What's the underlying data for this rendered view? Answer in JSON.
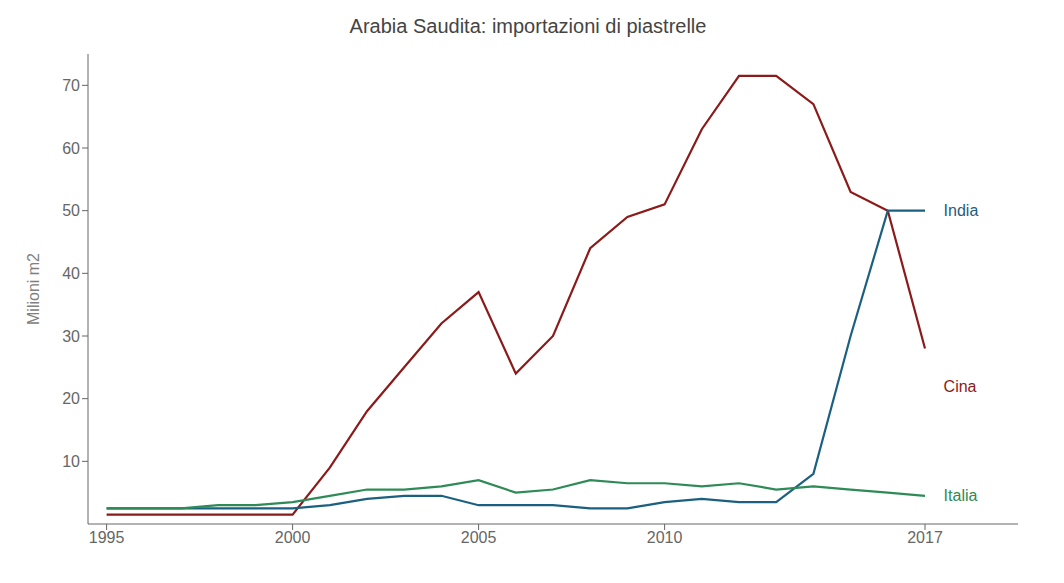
{
  "chart_data": {
    "type": "line",
    "title": "Arabia Saudita: importazioni di piastrelle",
    "y_label": "Milioni m2",
    "x": [
      1995,
      1996,
      1997,
      1998,
      1999,
      2000,
      2001,
      2002,
      2003,
      2004,
      2005,
      2006,
      2007,
      2008,
      2009,
      2010,
      2011,
      2012,
      2013,
      2014,
      2015,
      2016,
      2017
    ],
    "series": [
      {
        "color": "#8B1A1A",
        "values": [
          1.5,
          1.5,
          1.5,
          1.5,
          1.5,
          1.5,
          9.0,
          18.0,
          25.0,
          32.0,
          37.0,
          24.0,
          30.0,
          44.0,
          49.0,
          51.0,
          63.0,
          71.5,
          71.5,
          67.0,
          53.0,
          50.0,
          28.0
        ]
      },
      {
        "color": "#1B6080",
        "values": [
          2.5,
          2.5,
          2.5,
          2.5,
          2.5,
          2.5,
          3.0,
          4.0,
          4.5,
          4.5,
          3.0,
          3.0,
          3.0,
          2.5,
          2.5,
          3.5,
          4.0,
          3.5,
          3.5,
          8.0,
          30.0,
          50.0,
          50.0
        ]
      },
      {
        "color": "#2E8B57",
        "values": [
          2.5,
          2.5,
          2.5,
          3.0,
          3.0,
          3.5,
          4.5,
          5.5,
          5.5,
          6.0,
          7.0,
          5.0,
          5.5,
          7.0,
          6.5,
          6.5,
          6.0,
          6.5,
          5.5,
          6.0,
          5.5,
          5.0,
          4.5
        ]
      }
    ],
    "xlim": [
      1994.5,
      2019.5
    ],
    "xticks": [
      1995,
      2000,
      2005,
      2010,
      2017
    ],
    "ylim": [
      0,
      75
    ],
    "yticks": [
      10,
      20,
      30,
      40,
      50,
      60,
      70
    ],
    "grid": false,
    "annotations": [
      {
        "text": "India",
        "x": 2017.5,
        "y": 50,
        "color": "#1B6080"
      },
      {
        "text": "Cina",
        "x": 2017.5,
        "y": 22,
        "color": "#8B1A1A"
      },
      {
        "text": "Italia",
        "x": 2017.5,
        "y": 4.5,
        "color": "#2E8B57"
      }
    ]
  }
}
